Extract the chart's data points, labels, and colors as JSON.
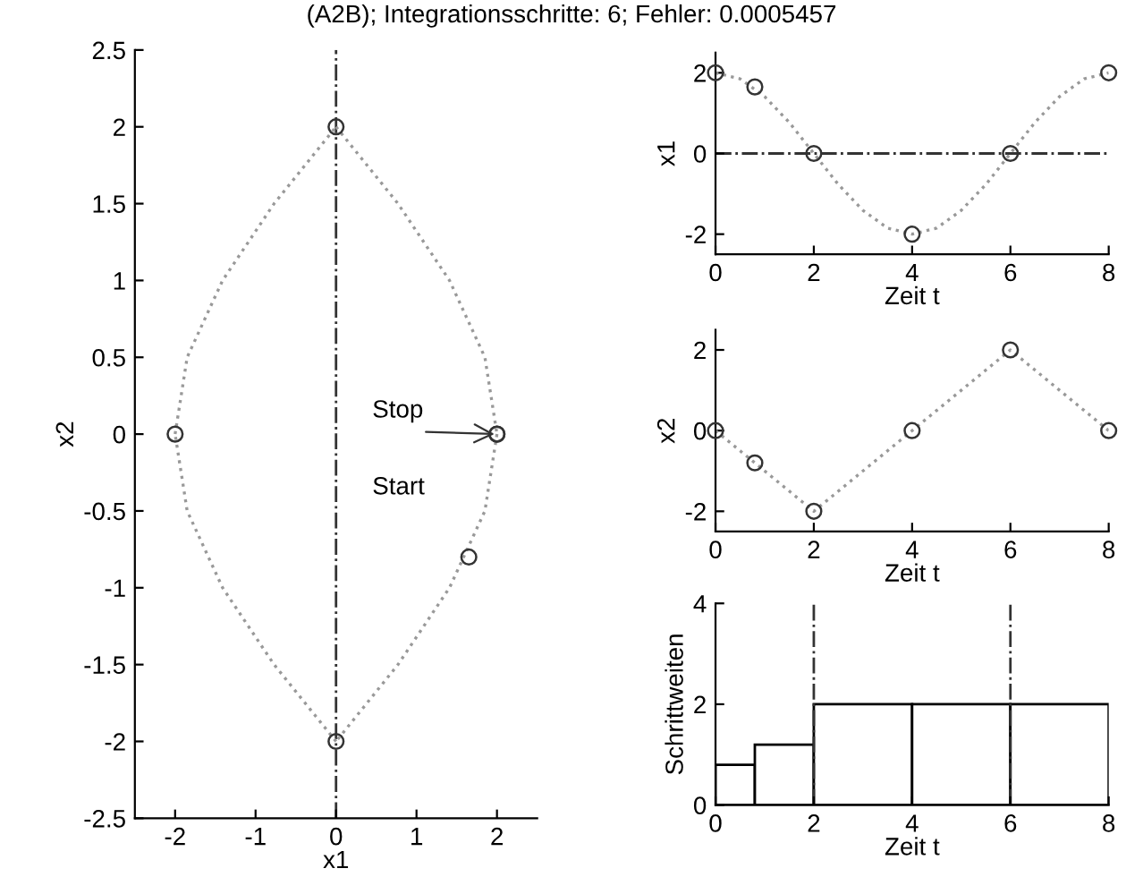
{
  "chart_data": [
    {
      "type": "scatter",
      "title": "(A2B); Integrationsschritte: 6; Fehler: 0.0005457",
      "xlabel": "x1",
      "ylabel": "x2",
      "xlim": [
        -2.5,
        2.5
      ],
      "ylim": [
        -2.5,
        2.5
      ],
      "xticks": [
        -2,
        -1,
        0,
        1,
        2
      ],
      "yticks": [
        -2.5,
        -2,
        -1.5,
        -1,
        -0.5,
        0,
        0.5,
        1,
        1.5,
        2,
        2.5
      ],
      "grid": false,
      "series": [
        {
          "type": "line",
          "color": "#999999",
          "line_style": "dotted",
          "marker": "none",
          "x": [
            2,
            1.85,
            1.41,
            0.77,
            0
          ],
          "values": [
            0,
            -0.5,
            -1,
            -1.5,
            -2
          ]
        },
        {
          "type": "line",
          "color": "#999999",
          "line_style": "dotted",
          "marker": "none",
          "x": [
            0,
            -0.77,
            -1.41,
            -1.85,
            -2
          ],
          "values": [
            -2,
            -1.5,
            -1,
            -0.5,
            0
          ]
        },
        {
          "type": "line",
          "color": "#999999",
          "line_style": "dotted",
          "marker": "none",
          "x": [
            -2,
            -1.85,
            -1.41,
            -0.77,
            0
          ],
          "values": [
            0,
            0.5,
            1,
            1.5,
            2
          ]
        },
        {
          "type": "line",
          "color": "#999999",
          "line_style": "dotted",
          "marker": "none",
          "x": [
            0,
            0.77,
            1.41,
            1.85,
            2
          ],
          "values": [
            2,
            1.5,
            1,
            0.5,
            0
          ]
        },
        {
          "type": "scatter",
          "color": "#333333",
          "marker": "circle",
          "x": [
            2,
            1.65,
            0,
            -2,
            0,
            2
          ],
          "values": [
            0,
            -0.8,
            -2,
            0,
            2,
            0
          ]
        }
      ],
      "ref_lines": [
        {
          "axis": "x",
          "value": 0,
          "line_style": "dashed",
          "color": "#333333"
        }
      ],
      "annotations": [
        {
          "text": "Stop",
          "x": 2,
          "y": 0
        },
        "Start"
      ]
    },
    {
      "type": "scatter",
      "xlabel": "Zeit t",
      "ylabel": "x1",
      "xlim": [
        0,
        8
      ],
      "ylim": [
        -2.5,
        2.5
      ],
      "xticks": [
        0,
        2,
        4,
        6,
        8
      ],
      "yticks": [
        -2,
        0,
        2
      ],
      "grid": false,
      "series": [
        {
          "type": "line",
          "color": "#999999",
          "line_style": "dotted",
          "marker": "none",
          "x": [
            0,
            0.5,
            1,
            1.5,
            2,
            2.5,
            3,
            3.5,
            4,
            4.5,
            5,
            5.5,
            6,
            6.5,
            7,
            7.5,
            8
          ],
          "values": [
            2,
            1.85,
            1.41,
            0.77,
            0,
            -0.77,
            -1.41,
            -1.85,
            -2,
            -1.85,
            -1.41,
            -0.77,
            0,
            0.77,
            1.41,
            1.85,
            2
          ]
        },
        {
          "type": "scatter",
          "color": "#333333",
          "marker": "circle",
          "x": [
            0,
            0.8,
            2,
            4,
            6,
            8
          ],
          "values": [
            2,
            1.65,
            0,
            -2,
            0,
            2
          ]
        }
      ],
      "ref_lines": [
        {
          "axis": "y",
          "value": 0,
          "line_style": "dashed",
          "color": "#333333"
        }
      ]
    },
    {
      "type": "scatter",
      "xlabel": "Zeit t",
      "ylabel": "x2",
      "xlim": [
        0,
        8
      ],
      "ylim": [
        -2.5,
        2.5
      ],
      "xticks": [
        0,
        2,
        4,
        6,
        8
      ],
      "yticks": [
        -2,
        0,
        2
      ],
      "grid": false,
      "series": [
        {
          "type": "line",
          "color": "#999999",
          "line_style": "dotted",
          "marker": "none",
          "x": [
            0,
            0.5,
            1,
            1.5,
            2,
            2.5,
            3,
            3.5,
            4,
            4.5,
            5,
            5.5,
            6,
            6.5,
            7,
            7.5,
            8
          ],
          "values": [
            0,
            -0.5,
            -1,
            -1.5,
            -2,
            -1.5,
            -1,
            -0.5,
            0,
            0.5,
            1,
            1.5,
            2,
            1.5,
            1,
            0.5,
            0
          ]
        },
        {
          "type": "scatter",
          "color": "#333333",
          "marker": "circle",
          "x": [
            0,
            0.8,
            2,
            4,
            6,
            8
          ],
          "values": [
            0,
            -0.8,
            -2,
            0,
            2,
            0
          ]
        }
      ]
    },
    {
      "type": "histogram",
      "xlabel": "Zeit t",
      "ylabel": "Schrittweiten",
      "xlim": [
        0,
        8
      ],
      "ylim": [
        0,
        4
      ],
      "xticks": [
        0,
        2,
        4,
        6,
        8
      ],
      "yticks": [
        0,
        2,
        4
      ],
      "grid": false,
      "bins": [
        0,
        0.8,
        2,
        4,
        6,
        8
      ],
      "values": [
        0.8,
        1.2,
        2,
        2,
        2
      ],
      "color": "#ffffff",
      "ref_lines": [
        {
          "axis": "x",
          "value": 2,
          "line_style": "dashed",
          "color": "#333333"
        },
        {
          "axis": "x",
          "value": 6,
          "line_style": "dashed",
          "color": "#333333"
        }
      ]
    }
  ]
}
